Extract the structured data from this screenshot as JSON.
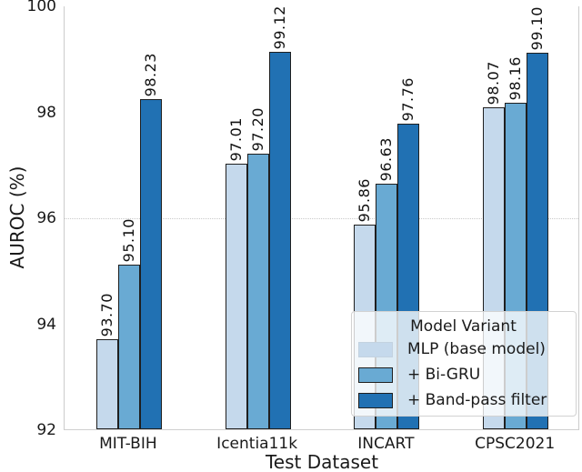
{
  "chart_data": {
    "type": "bar",
    "title": "",
    "xlabel": "Test Dataset",
    "ylabel": "AUROC (%)",
    "ylim": [
      92,
      100
    ],
    "yticks": [
      "92",
      "94",
      "96",
      "98",
      "100"
    ],
    "gridline_y": 96,
    "grid": "single dotted horizontal reference line at y=96",
    "categories": [
      "MIT-BIH",
      "Icentia11k",
      "INCART",
      "CPSC2021"
    ],
    "legend": {
      "title": "Model Variant",
      "position": "lower right inside axes"
    },
    "series": [
      {
        "name": "MLP (base model)",
        "color": "#c5d9ec",
        "edge_color": "#1f1f1f",
        "legend_swatch_border": "#c3d2e0",
        "values": [
          93.7,
          97.01,
          95.86,
          98.07
        ],
        "labels": [
          "93.70",
          "97.01",
          "95.86",
          "98.07"
        ]
      },
      {
        "name": "+ Bi-GRU",
        "color": "#69aad3",
        "edge_color": "#1f1f1f",
        "legend_swatch_border": "#1f1f1f",
        "values": [
          95.1,
          97.2,
          96.63,
          98.16
        ],
        "labels": [
          "95.10",
          "97.20",
          "96.63",
          "98.16"
        ]
      },
      {
        "name": "+ Band-pass filter",
        "color": "#2171b3",
        "edge_color": "#1f1f1f",
        "legend_swatch_border": "#1f1f1f",
        "values": [
          98.23,
          99.12,
          97.76,
          99.1
        ],
        "labels": [
          "98.23",
          "99.12",
          "97.76",
          "99.10"
        ]
      }
    ]
  },
  "colors": {
    "background": "#ffffff",
    "spine": "#cccccc",
    "gridline": "#c9c9c9",
    "tick_text": "#1a1a1a",
    "value_label_text": "#111111",
    "legend_border": "#d2d2d2"
  }
}
